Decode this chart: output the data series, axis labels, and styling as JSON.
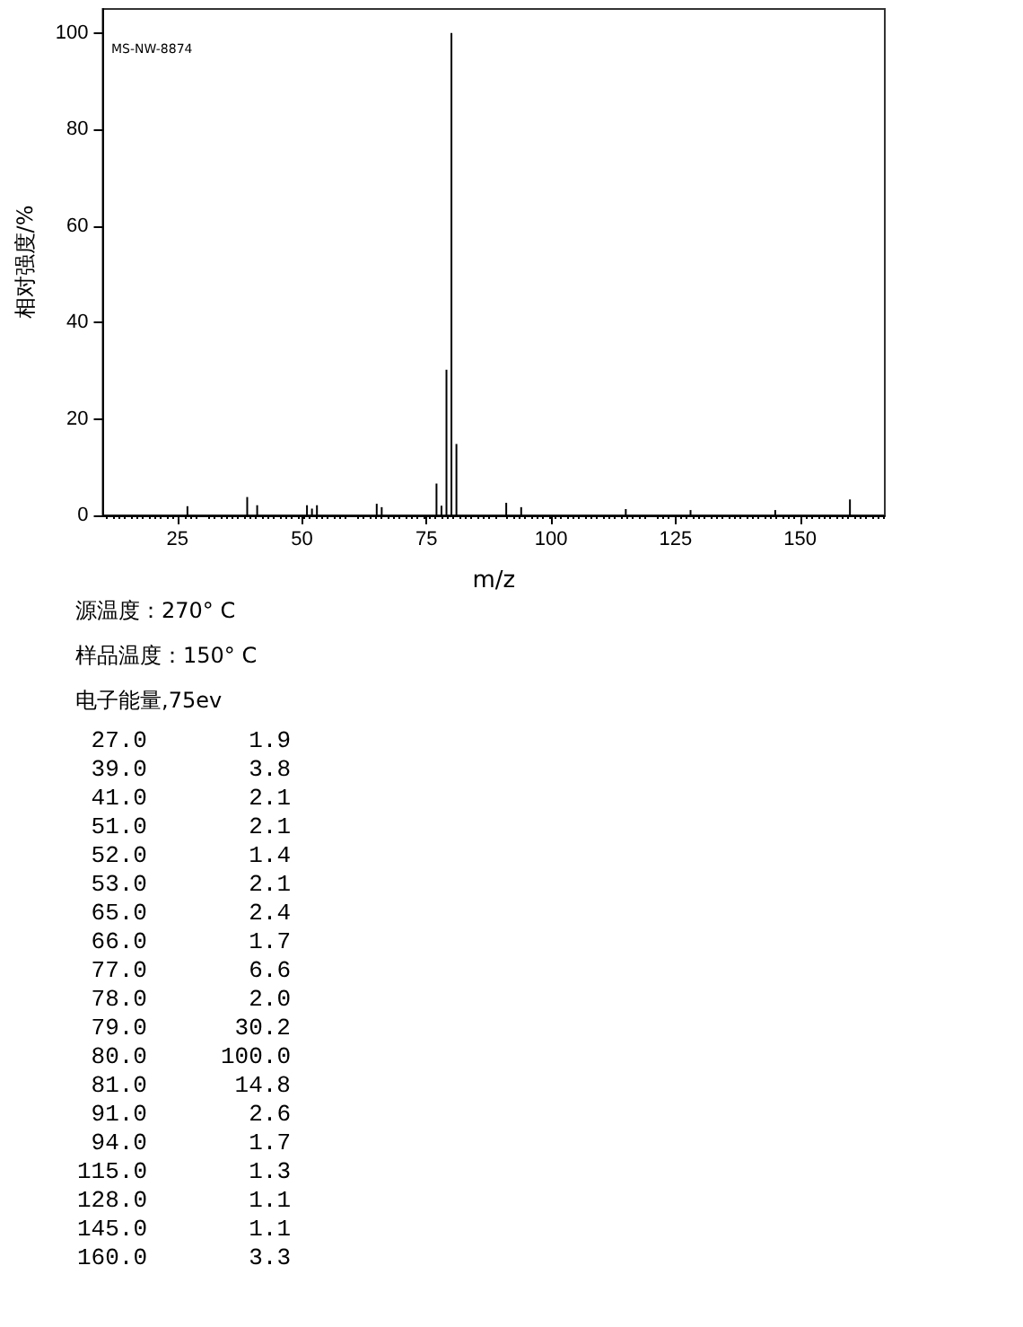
{
  "chart_data": {
    "type": "bar",
    "xlabel": "m/z",
    "ylabel": "相对强度/%",
    "annotations": [
      "MS-NW-8874",
      "源温度：270° C",
      "样品温度：150° C",
      "电子能量,75ev",
      "27.0",
      "1.9",
      "39.0",
      "3.8",
      "41.0",
      "2.1",
      "51.0",
      "2.1",
      "52.0",
      "1.4",
      "53.0",
      "2.1",
      "65.0",
      "2.4",
      "66.0",
      "1.7",
      "77.0",
      "6.6",
      "78.0",
      "2.0",
      "79.0",
      "30.2",
      "80.0",
      "100.0",
      "81.0",
      "14.8",
      "91.0",
      "2.6",
      "94.0",
      "1.7",
      "115.0",
      "1.3",
      "128.0",
      "1.1",
      "145.0",
      "1.1",
      "160.0",
      "3.3"
    ],
    "x": [
      27,
      39,
      41,
      51,
      52,
      53,
      65,
      66,
      77,
      78,
      79,
      80,
      81,
      91,
      94,
      115,
      128,
      145,
      160
    ],
    "values": [
      1.9,
      3.8,
      2.1,
      2.1,
      1.4,
      2.1,
      2.4,
      1.7,
      6.6,
      2.0,
      30.2,
      100.0,
      14.8,
      2.6,
      1.7,
      1.3,
      1.1,
      1.1,
      3.3
    ],
    "color": "#000000",
    "xlim": [
      10,
      167
    ],
    "xticks": [
      25,
      50,
      75,
      100,
      125,
      150
    ],
    "ylim": [
      0,
      105
    ],
    "yticks": [
      0,
      20,
      40,
      60,
      80,
      100
    ],
    "grid": false
  }
}
